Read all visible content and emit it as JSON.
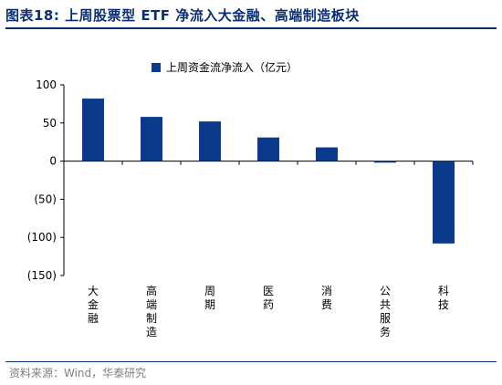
{
  "header": {
    "title": "图表18:   上周股票型 ETF 净流入大金融、高端制造板块"
  },
  "footer": {
    "source": "资料来源：Wind，华泰研究"
  },
  "chart_data": {
    "type": "bar",
    "categories": [
      "大金融",
      "高端制造",
      "周期",
      "医药",
      "消费",
      "公共服务",
      "科技"
    ],
    "series": [
      {
        "name": "上周资金流净流入（亿元）",
        "values": [
          82,
          58,
          52,
          31,
          18,
          -2,
          -108
        ]
      }
    ],
    "ylim": [
      -150,
      100
    ],
    "yticks": [
      100,
      50,
      0,
      -50,
      -100,
      -150
    ],
    "ytick_labels": [
      "100",
      "50",
      "0",
      "(50)",
      "(100)",
      "(150)"
    ],
    "grid": false,
    "legend": "top-left",
    "colors": {
      "bar": "#0b3a8c",
      "axis": "#000000",
      "title": "#0b2f73"
    }
  }
}
